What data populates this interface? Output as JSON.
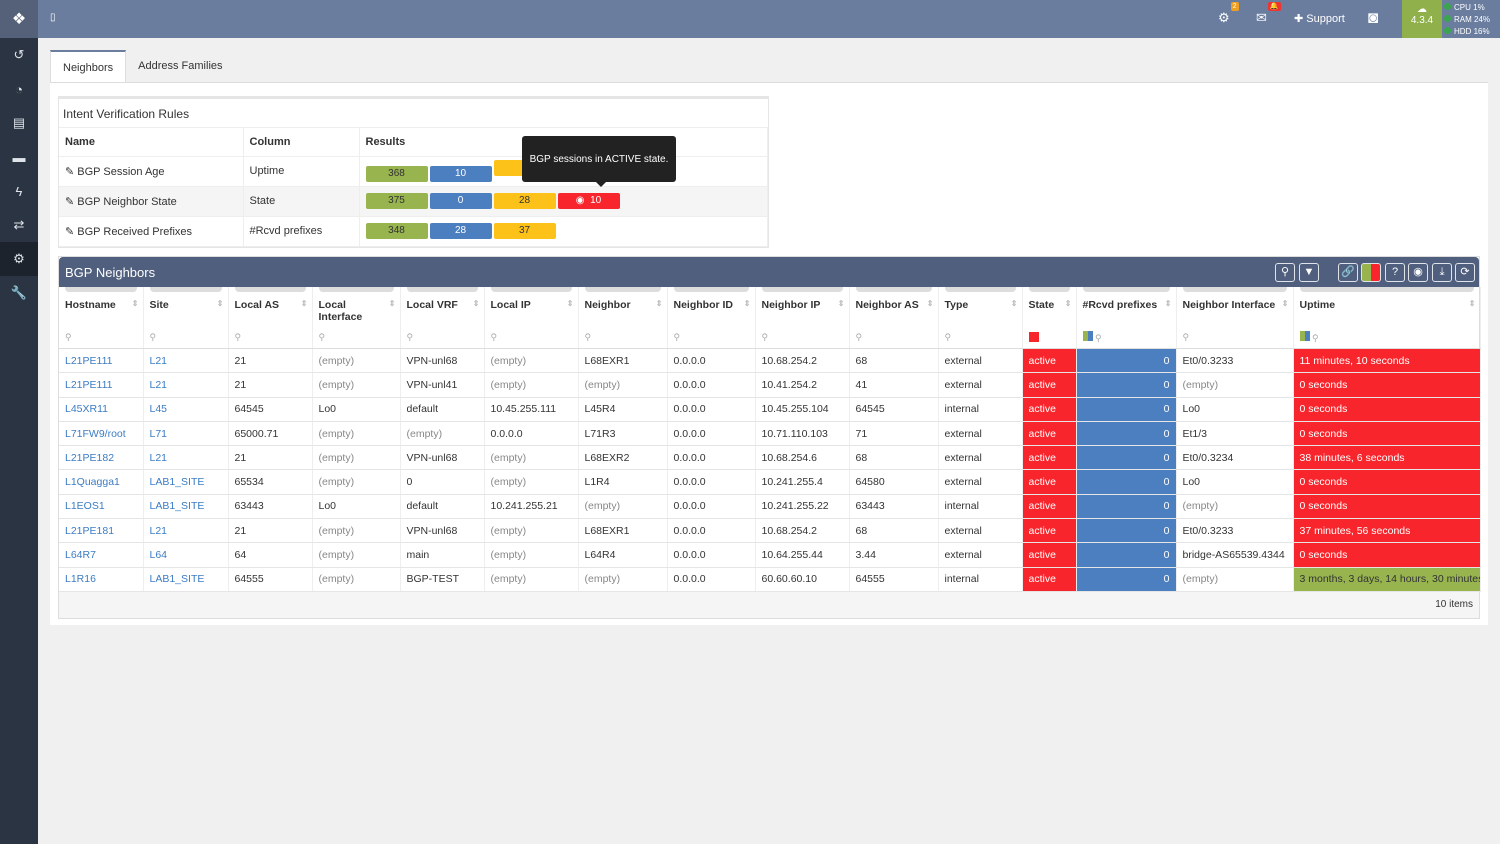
{
  "topbar": {
    "gear_badge": "2",
    "support": "Support",
    "version": "4.3.4",
    "cpu_label": "CPU",
    "cpu": "1%",
    "ram_label": "RAM",
    "ram": "24%",
    "hdd_label": "HDD",
    "hdd": "16%"
  },
  "tabs": [
    "Neighbors",
    "Address Families"
  ],
  "rules": {
    "title": "Intent Verification Rules",
    "headers": [
      "Name",
      "Column",
      "Results"
    ],
    "rows": [
      {
        "name": "BGP Session Age",
        "column": "Uptime",
        "results": [
          "368",
          "10",
          "",
          ""
        ]
      },
      {
        "name": "BGP Neighbor State",
        "column": "State",
        "results": [
          "375",
          "0",
          "28",
          "10"
        ]
      },
      {
        "name": "BGP Received Prefixes",
        "column": "#Rcvd prefixes",
        "results": [
          "348",
          "28",
          "37",
          ""
        ]
      }
    ],
    "tooltip": "BGP sessions in ACTIVE state."
  },
  "grid": {
    "title": "BGP Neighbors",
    "footer": "10 items",
    "columns": [
      "Hostname",
      "Site",
      "Local AS",
      "Local Interface",
      "Local VRF",
      "Local IP",
      "Neighbor",
      "Neighbor ID",
      "Neighbor IP",
      "Neighbor AS",
      "Type",
      "State",
      "#Rcvd prefixes",
      "Neighbor Interface",
      "Uptime"
    ],
    "rows": [
      [
        "L21PE111",
        "L21",
        "21",
        "(empty)",
        "VPN-unl68",
        "(empty)",
        "L68EXR1",
        "0.0.0.0",
        "10.68.254.2",
        "68",
        "external",
        "active",
        "0",
        "Et0/0.3233",
        "11 minutes, 10 seconds"
      ],
      [
        "L21PE111",
        "L21",
        "21",
        "(empty)",
        "VPN-unl41",
        "(empty)",
        "(empty)",
        "0.0.0.0",
        "10.41.254.2",
        "41",
        "external",
        "active",
        "0",
        "(empty)",
        "0 seconds"
      ],
      [
        "L45XR11",
        "L45",
        "64545",
        "Lo0",
        "default",
        "10.45.255.111",
        "L45R4",
        "0.0.0.0",
        "10.45.255.104",
        "64545",
        "internal",
        "active",
        "0",
        "Lo0",
        "0 seconds"
      ],
      [
        "L71FW9/root",
        "L71",
        "65000.71",
        "(empty)",
        "(empty)",
        "0.0.0.0",
        "L71R3",
        "0.0.0.0",
        "10.71.110.103",
        "71",
        "external",
        "active",
        "0",
        "Et1/3",
        "0 seconds"
      ],
      [
        "L21PE182",
        "L21",
        "21",
        "(empty)",
        "VPN-unl68",
        "(empty)",
        "L68EXR2",
        "0.0.0.0",
        "10.68.254.6",
        "68",
        "external",
        "active",
        "0",
        "Et0/0.3234",
        "38 minutes, 6 seconds"
      ],
      [
        "L1Quagga1",
        "LAB1_SITE",
        "65534",
        "(empty)",
        "0",
        "(empty)",
        "L1R4",
        "0.0.0.0",
        "10.241.255.4",
        "64580",
        "external",
        "active",
        "0",
        "Lo0",
        "0 seconds"
      ],
      [
        "L1EOS1",
        "LAB1_SITE",
        "63443",
        "Lo0",
        "default",
        "10.241.255.21",
        "(empty)",
        "0.0.0.0",
        "10.241.255.22",
        "63443",
        "internal",
        "active",
        "0",
        "(empty)",
        "0 seconds"
      ],
      [
        "L21PE181",
        "L21",
        "21",
        "(empty)",
        "VPN-unl68",
        "(empty)",
        "L68EXR1",
        "0.0.0.0",
        "10.68.254.2",
        "68",
        "external",
        "active",
        "0",
        "Et0/0.3233",
        "37 minutes, 56 seconds"
      ],
      [
        "L64R7",
        "L64",
        "64",
        "(empty)",
        "main",
        "(empty)",
        "L64R4",
        "0.0.0.0",
        "10.64.255.44",
        "3.44",
        "external",
        "active",
        "0",
        "bridge-AS65539.4344",
        "0 seconds"
      ],
      [
        "L1R16",
        "LAB1_SITE",
        "64555",
        "(empty)",
        "BGP-TEST",
        "(empty)",
        "(empty)",
        "0.0.0.0",
        "60.60.60.10",
        "64555",
        "internal",
        "active",
        "0",
        "(empty)",
        "3 months, 3 days, 14 hours, 30 minutes"
      ]
    ]
  }
}
